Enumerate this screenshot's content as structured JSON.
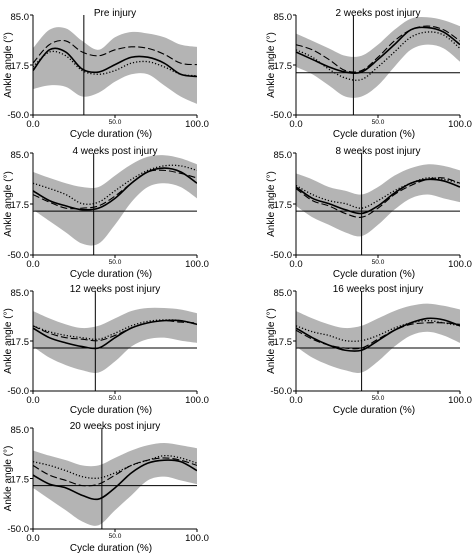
{
  "chart_data": [
    {
      "type": "line",
      "title": "Pre injury",
      "xlabel": "Cycle duration (%)",
      "ylabel": "Ankle angle (°)",
      "xlim": [
        0,
        100
      ],
      "ylim": [
        -50,
        85
      ],
      "xticks": [
        "0.0",
        "50.0",
        "100.0"
      ],
      "yticks": [
        "85.0",
        "17.5",
        "-50.0"
      ],
      "vline_x": 31,
      "hline_y": null,
      "x": [
        0,
        10,
        20,
        30,
        40,
        50,
        60,
        70,
        80,
        90,
        100
      ],
      "band": {
        "upper": [
          40,
          65,
          67,
          50,
          38,
          55,
          62,
          60,
          55,
          45,
          42
        ],
        "lower": [
          -15,
          -10,
          -12,
          -25,
          -20,
          -5,
          5,
          5,
          -10,
          -25,
          -35
        ]
      },
      "series": [
        {
          "style": "solid",
          "values": [
            10,
            38,
            35,
            12,
            8,
            18,
            28,
            28,
            20,
            5,
            2
          ]
        },
        {
          "style": "dashed",
          "values": [
            20,
            45,
            50,
            35,
            30,
            38,
            42,
            40,
            32,
            20,
            18
          ]
        },
        {
          "style": "dotted",
          "values": [
            15,
            35,
            30,
            10,
            5,
            10,
            20,
            22,
            15,
            5,
            3
          ]
        }
      ]
    },
    {
      "type": "line",
      "title": "2 weeks post injury",
      "xlabel": "Cycle duration (%)",
      "ylabel": "Ankle angle (°)",
      "xlim": [
        0,
        100
      ],
      "ylim": [
        -50,
        85
      ],
      "xticks": [
        "0.0",
        "50.0",
        "100.0"
      ],
      "yticks": [
        "85.0",
        "17.5",
        "-50.0"
      ],
      "vline_x": 35,
      "hline_y": 7,
      "x": [
        0,
        10,
        20,
        30,
        40,
        50,
        60,
        70,
        80,
        90,
        100
      ],
      "band": {
        "upper": [
          60,
          50,
          40,
          30,
          30,
          45,
          65,
          80,
          82,
          78,
          70
        ],
        "lower": [
          15,
          5,
          -10,
          -25,
          -25,
          -10,
          15,
          38,
          45,
          40,
          22
        ]
      },
      "series": [
        {
          "style": "solid",
          "values": [
            35,
            25,
            15,
            8,
            8,
            25,
            45,
            65,
            68,
            62,
            45
          ]
        },
        {
          "style": "dashed",
          "values": [
            45,
            38,
            25,
            10,
            10,
            28,
            50,
            65,
            70,
            65,
            50
          ]
        },
        {
          "style": "dotted",
          "values": [
            38,
            28,
            12,
            0,
            -2,
            15,
            35,
            55,
            62,
            58,
            40
          ]
        }
      ]
    },
    {
      "type": "line",
      "title": "4 weeks post injury",
      "xlabel": "Cycle duration (%)",
      "ylabel": "Ankle angle (°)",
      "xlim": [
        0,
        100
      ],
      "ylim": [
        -50,
        85
      ],
      "xticks": [
        "0.0",
        "50.0",
        "100.0"
      ],
      "yticks": [
        "85.0",
        "17.5",
        "-50.0"
      ],
      "vline_x": 37,
      "hline_y": 8,
      "x": [
        0,
        10,
        20,
        30,
        40,
        50,
        60,
        70,
        80,
        90,
        100
      ],
      "band": {
        "upper": [
          60,
          52,
          45,
          40,
          40,
          55,
          70,
          80,
          82,
          78,
          70
        ],
        "lower": [
          10,
          -5,
          -20,
          -35,
          -35,
          -10,
          20,
          40,
          45,
          40,
          25
        ]
      },
      "series": [
        {
          "style": "solid",
          "values": [
            35,
            22,
            15,
            10,
            12,
            25,
            45,
            60,
            65,
            60,
            45
          ]
        },
        {
          "style": "dashed",
          "values": [
            30,
            20,
            12,
            12,
            15,
            28,
            45,
            60,
            62,
            58,
            52
          ]
        },
        {
          "style": "dotted",
          "values": [
            45,
            38,
            30,
            18,
            20,
            35,
            50,
            62,
            68,
            68,
            62
          ]
        }
      ]
    },
    {
      "type": "line",
      "title": "8 weeks post injury",
      "xlabel": "Cycle duration (%)",
      "ylabel": "Ankle angle (°)",
      "xlim": [
        0,
        100
      ],
      "ylim": [
        -50,
        85
      ],
      "xticks": [
        "0.0",
        "50.0",
        "100.0"
      ],
      "yticks": [
        "85.0",
        "17.5",
        "-50.0"
      ],
      "vline_x": 40,
      "hline_y": 8,
      "x": [
        0,
        10,
        20,
        30,
        40,
        50,
        60,
        70,
        80,
        90,
        100
      ],
      "band": {
        "upper": [
          58,
          50,
          40,
          35,
          30,
          40,
          55,
          65,
          70,
          68,
          62
        ],
        "lower": [
          15,
          0,
          -10,
          -20,
          -25,
          -10,
          10,
          25,
          30,
          25,
          20
        ]
      },
      "series": [
        {
          "style": "solid",
          "values": [
            40,
            25,
            18,
            10,
            5,
            15,
            32,
            45,
            50,
            48,
            40
          ]
        },
        {
          "style": "dashed",
          "values": [
            38,
            22,
            15,
            5,
            0,
            12,
            30,
            42,
            50,
            52,
            45
          ]
        },
        {
          "style": "dotted",
          "values": [
            42,
            30,
            22,
            18,
            12,
            22,
            35,
            45,
            52,
            50,
            45
          ]
        }
      ]
    },
    {
      "type": "line",
      "title": "12 weeks post injury",
      "xlabel": "Cycle duration (%)",
      "ylabel": "Ankle angle (°)",
      "xlim": [
        0,
        100
      ],
      "ylim": [
        -50,
        85
      ],
      "xticks": [
        "0.0",
        "50.0",
        "100.0"
      ],
      "yticks": [
        "85.0",
        "17.5",
        "-50.0"
      ],
      "vline_x": 38,
      "hline_y": 8,
      "x": [
        0,
        10,
        20,
        30,
        40,
        50,
        60,
        70,
        80,
        90,
        100
      ],
      "band": {
        "upper": [
          58,
          48,
          40,
          35,
          38,
          48,
          58,
          62,
          62,
          60,
          55
        ],
        "lower": [
          10,
          -5,
          -15,
          -22,
          -25,
          -10,
          10,
          20,
          22,
          18,
          15
        ]
      },
      "series": [
        {
          "style": "solid",
          "values": [
            35,
            22,
            15,
            10,
            8,
            22,
            35,
            42,
            45,
            45,
            40
          ]
        },
        {
          "style": "dashed",
          "values": [
            38,
            28,
            22,
            20,
            18,
            25,
            35,
            42,
            45,
            43,
            42
          ]
        },
        {
          "style": "dotted",
          "values": [
            38,
            30,
            25,
            22,
            20,
            28,
            38,
            44,
            46,
            45,
            40
          ]
        }
      ]
    },
    {
      "type": "line",
      "title": "16 weeks post injury",
      "xlabel": "Cycle duration (%)",
      "ylabel": "Ankle angle (°)",
      "xlim": [
        0,
        100
      ],
      "ylim": [
        -50,
        85
      ],
      "xticks": [
        "0.0",
        "50.0",
        "100.0"
      ],
      "yticks": [
        "85.0",
        "17.5",
        "-50.0"
      ],
      "vline_x": 40,
      "hline_y": 8,
      "x": [
        0,
        10,
        20,
        30,
        40,
        50,
        60,
        70,
        80,
        90,
        100
      ],
      "band": {
        "upper": [
          58,
          48,
          40,
          35,
          38,
          48,
          58,
          65,
          68,
          65,
          60
        ],
        "lower": [
          10,
          -5,
          -15,
          -22,
          -25,
          -10,
          10,
          25,
          30,
          25,
          15
        ]
      },
      "series": [
        {
          "style": "solid",
          "values": [
            35,
            22,
            12,
            5,
            5,
            18,
            32,
            42,
            48,
            46,
            38
          ]
        },
        {
          "style": "dashed",
          "values": [
            32,
            20,
            12,
            8,
            8,
            20,
            32,
            40,
            42,
            42,
            40
          ]
        },
        {
          "style": "dotted",
          "values": [
            38,
            30,
            25,
            18,
            18,
            25,
            35,
            42,
            45,
            42,
            38
          ]
        }
      ]
    },
    {
      "type": "line",
      "title": "20 weeks post injury",
      "xlabel": "Cycle duration (%)",
      "ylabel": "Ankle angle (°)",
      "xlim": [
        0,
        100
      ],
      "ylim": [
        -50,
        85
      ],
      "xticks": [
        "0.0",
        "50.0",
        "100.0"
      ],
      "yticks": [
        "85.0",
        "17.5",
        "-50.0"
      ],
      "vline_x": 42,
      "hline_y": 8,
      "x": [
        0,
        10,
        20,
        30,
        40,
        50,
        60,
        70,
        80,
        90,
        100
      ],
      "band": {
        "upper": [
          55,
          48,
          42,
          35,
          35,
          45,
          55,
          62,
          65,
          62,
          58
        ],
        "lower": [
          5,
          -10,
          -25,
          -40,
          -45,
          -25,
          -5,
          15,
          20,
          15,
          10
        ]
      },
      "series": [
        {
          "style": "solid",
          "values": [
            22,
            10,
            5,
            -5,
            -10,
            5,
            25,
            38,
            42,
            40,
            28
          ]
        },
        {
          "style": "dashed",
          "values": [
            35,
            22,
            15,
            8,
            10,
            22,
            35,
            42,
            45,
            42,
            35
          ]
        },
        {
          "style": "dotted",
          "values": [
            40,
            35,
            28,
            20,
            18,
            25,
            35,
            42,
            48,
            45,
            38
          ]
        }
      ]
    }
  ]
}
